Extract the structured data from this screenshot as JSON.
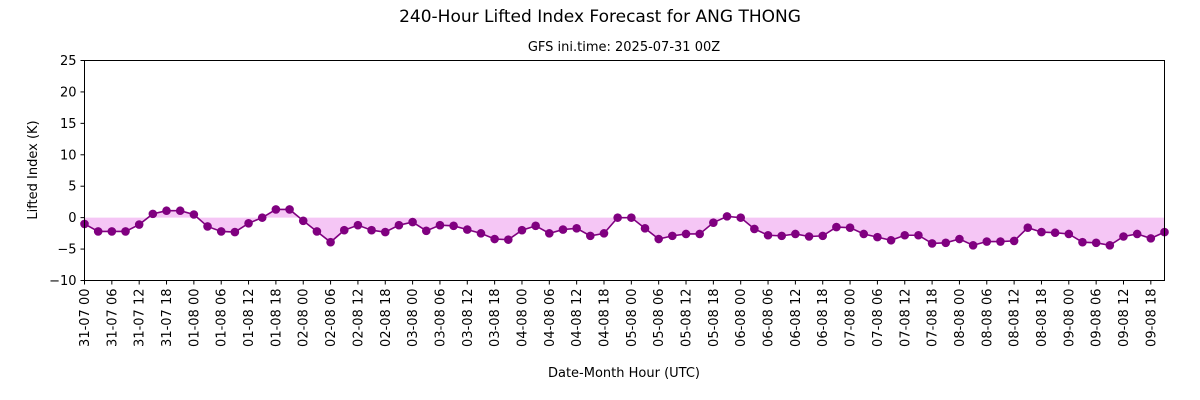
{
  "chart_data": {
    "type": "line",
    "title": "240-Hour Lifted Index Forecast for ANG THONG",
    "subtitle": "GFS ini.time: 2025-07-31 00Z",
    "xlabel": "Date-Month Hour (UTC)",
    "ylabel": "Lifted Index (K)",
    "ylim": [
      -10,
      25
    ],
    "yticks": [
      "−10",
      "−5",
      "0",
      "5",
      "10",
      "15",
      "20",
      "25"
    ],
    "xlim_hours": [
      0,
      237
    ],
    "xtick_step_hours": 6,
    "xtick_labels": [
      "31-07 00",
      "31-07 06",
      "31-07 12",
      "31-07 18",
      "01-08 00",
      "01-08 06",
      "01-08 12",
      "01-08 18",
      "02-08 00",
      "02-08 06",
      "02-08 12",
      "02-08 18",
      "03-08 00",
      "03-08 06",
      "03-08 12",
      "03-08 18",
      "04-08 00",
      "04-08 06",
      "04-08 12",
      "04-08 18",
      "05-08 00",
      "05-08 06",
      "05-08 12",
      "05-08 18",
      "06-08 00",
      "06-08 06",
      "06-08 12",
      "06-08 18",
      "07-08 00",
      "07-08 06",
      "07-08 12",
      "07-08 18",
      "08-08 00",
      "08-08 06",
      "08-08 12",
      "08-08 18",
      "09-08 00",
      "09-08 06",
      "09-08 12",
      "09-08 18"
    ],
    "x_step_hours": 3,
    "values": [
      -1.0,
      -2.2,
      -2.2,
      -2.2,
      -1.1,
      0.6,
      1.1,
      1.1,
      0.5,
      -1.4,
      -2.2,
      -2.3,
      -0.9,
      0.0,
      1.3,
      1.3,
      -0.5,
      -2.2,
      -3.9,
      -2.0,
      -1.2,
      -2.0,
      -2.3,
      -1.2,
      -0.7,
      -2.1,
      -1.2,
      -1.3,
      -1.9,
      -2.5,
      -3.4,
      -3.5,
      -2.0,
      -1.3,
      -2.5,
      -1.9,
      -1.7,
      -2.9,
      -2.5,
      0.0,
      0.0,
      -1.7,
      -3.4,
      -2.9,
      -2.6,
      -2.6,
      -0.8,
      0.2,
      0.0,
      -1.8,
      -2.8,
      -2.9,
      -2.6,
      -3.0,
      -2.9,
      -1.5,
      -1.6,
      -2.6,
      -3.1,
      -3.6,
      -2.8,
      -2.8,
      -4.1,
      -4.0,
      -3.4,
      -4.4,
      -3.8,
      -3.8,
      -3.7,
      -1.6,
      -2.3,
      -2.4,
      -2.6,
      -3.9,
      -4.0,
      -4.4,
      -3.0,
      -2.6,
      -3.3,
      -2.3
    ],
    "line_color": "#800080",
    "fill_color": "#f5c6f5",
    "grid": false,
    "legend": "none"
  }
}
